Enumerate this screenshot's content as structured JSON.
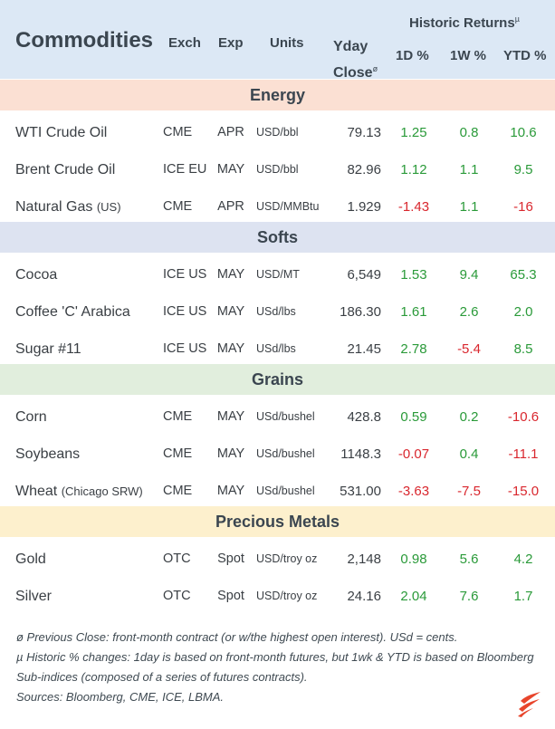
{
  "header": {
    "title": "Commodities",
    "exch": "Exch",
    "exp": "Exp",
    "units": "Units",
    "yday_line1": "Yday",
    "yday_line2": "Close",
    "yday_mark": "ø",
    "historic": "Historic Returns",
    "historic_mark": "µ",
    "col_1d": "1D %",
    "col_1w": "1W %",
    "col_ytd": "YTD %"
  },
  "sections": [
    {
      "name": "Energy",
      "color": "#fbe0d3",
      "rows": [
        {
          "name": "WTI Crude Oil",
          "sub": "",
          "exch": "CME",
          "exp": "APR",
          "units": "USD/bbl",
          "close": "79.13",
          "d1": "1.25",
          "w1": "0.8",
          "ytd": "10.6"
        },
        {
          "name": "Brent Crude Oil",
          "sub": "",
          "exch": "ICE EU",
          "exp": "MAY",
          "units": "USD/bbl",
          "close": "82.96",
          "d1": "1.12",
          "w1": "1.1",
          "ytd": "9.5"
        },
        {
          "name": "Natural Gas ",
          "sub": "(US)",
          "exch": "CME",
          "exp": "APR",
          "units": "USD/MMBtu",
          "close": "1.929",
          "d1": "-1.43",
          "w1": "1.1",
          "ytd": "-16"
        }
      ]
    },
    {
      "name": "Softs",
      "color": "#dde3f1",
      "rows": [
        {
          "name": "Cocoa",
          "sub": "",
          "exch": "ICE US",
          "exp": "MAY",
          "units": "USD/MT",
          "close": "6,549",
          "d1": "1.53",
          "w1": "9.4",
          "ytd": "65.3"
        },
        {
          "name": "Coffee 'C' Arabica",
          "sub": "",
          "exch": "ICE US",
          "exp": "MAY",
          "units": "USd/lbs",
          "close": "186.30",
          "d1": "1.61",
          "w1": "2.6",
          "ytd": "2.0"
        },
        {
          "name": "Sugar #11",
          "sub": "",
          "exch": "ICE US",
          "exp": "MAY",
          "units": "USd/lbs",
          "close": "21.45",
          "d1": "2.78",
          "w1": "-5.4",
          "ytd": "8.5"
        }
      ]
    },
    {
      "name": "Grains",
      "color": "#e1eedd",
      "rows": [
        {
          "name": "Corn",
          "sub": "",
          "exch": "CME",
          "exp": "MAY",
          "units": "USd/bushel",
          "close": "428.8",
          "d1": "0.59",
          "w1": "0.2",
          "ytd": "-10.6"
        },
        {
          "name": "Soybeans",
          "sub": "",
          "exch": "CME",
          "exp": "MAY",
          "units": "USd/bushel",
          "close": "1148.3",
          "d1": "-0.07",
          "w1": "0.4",
          "ytd": "-11.1"
        },
        {
          "name": "Wheat ",
          "sub": "(Chicago SRW)",
          "exch": "CME",
          "exp": "MAY",
          "units": "USd/bushel",
          "close": "531.00",
          "d1": "-3.63",
          "w1": "-7.5",
          "ytd": "-15.0"
        }
      ]
    },
    {
      "name": "Precious Metals",
      "color": "#fdf0cd",
      "rows": [
        {
          "name": "Gold",
          "sub": "",
          "exch": "OTC",
          "exp": "Spot",
          "units": "USD/troy oz",
          "close": "2,148",
          "d1": "0.98",
          "w1": "5.6",
          "ytd": "4.2"
        },
        {
          "name": "Silver",
          "sub": "",
          "exch": "OTC",
          "exp": "Spot",
          "units": "USD/troy oz",
          "close": "24.16",
          "d1": "2.04",
          "w1": "7.6",
          "ytd": "1.7"
        }
      ]
    }
  ],
  "notes": [
    "ø Previous Close: front-month contract (or w/the highest open interest). USd = cents.",
    "µ Historic % changes: 1day is based on front-month futures, but 1wk & YTD is based on Bloomberg Sub-indices (composed of a series of futures contracts).",
    "Sources: Bloomberg, CME, ICE, LBMA."
  ],
  "colors": {
    "positive": "#2a9a39",
    "negative": "#d9272e",
    "header_bg": "#dce8f5",
    "logo": "#e8452c"
  },
  "logo_icon": "flame-logo-icon"
}
